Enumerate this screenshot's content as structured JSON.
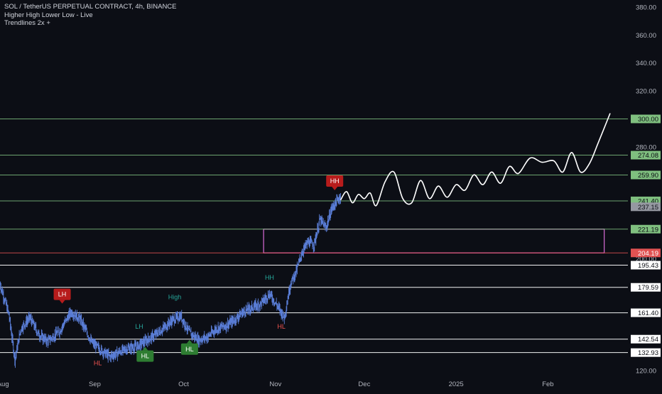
{
  "legend": {
    "symbol_line": "SOL / TetherUS PERPETUAL CONTRACT, 4h, BINANCE",
    "indicator_1": "Higher High Lower Low - Live",
    "indicator_2": "Trendlines 2x +"
  },
  "colors": {
    "background": "#0c0e15",
    "candles": "#5b7fd9",
    "green_level": "#7fbf7f",
    "red_level": "#e05252",
    "white_level": "#ffffff",
    "zone": "#c966c9",
    "label_green_bg": "#2e7d32",
    "label_red_bg": "#b71c1c",
    "text_green": "#26a69a",
    "text_red": "#ef5350",
    "axis_text": "#b2b5be"
  },
  "chart_data": {
    "type": "line",
    "title": "SOL / TetherUS PERPETUAL CONTRACT, 4h, BINANCE",
    "y_axis": {
      "range": [
        115,
        385
      ],
      "ticks": [
        "380.00",
        "360.00",
        "340.00",
        "320.00",
        "280.00",
        "200.00",
        "120.00"
      ]
    },
    "x_axis": {
      "range": [
        "2024-07-31",
        "2025-02-28"
      ],
      "ticks": [
        {
          "date": "2024-08-01",
          "label": "Aug"
        },
        {
          "date": "2024-09-01",
          "label": "Sep"
        },
        {
          "date": "2024-10-01",
          "label": "Oct"
        },
        {
          "date": "2024-11-01",
          "label": "Nov"
        },
        {
          "date": "2024-12-01",
          "label": "Dec"
        },
        {
          "date": "2025-01-01",
          "label": "2025"
        },
        {
          "date": "2025-02-01",
          "label": "Feb"
        }
      ]
    },
    "price_series": {
      "dates": [
        "2024-07-31",
        "2024-08-03",
        "2024-08-05",
        "2024-08-07",
        "2024-08-10",
        "2024-08-13",
        "2024-08-16",
        "2024-08-20",
        "2024-08-24",
        "2024-08-27",
        "2024-08-31",
        "2024-09-03",
        "2024-09-06",
        "2024-09-09",
        "2024-09-12",
        "2024-09-15",
        "2024-09-18",
        "2024-09-21",
        "2024-09-24",
        "2024-09-27",
        "2024-09-30",
        "2024-10-03",
        "2024-10-06",
        "2024-10-09",
        "2024-10-12",
        "2024-10-15",
        "2024-10-18",
        "2024-10-21",
        "2024-10-24",
        "2024-10-27",
        "2024-10-30",
        "2024-11-02",
        "2024-11-04",
        "2024-11-06",
        "2024-11-08",
        "2024-11-10",
        "2024-11-12",
        "2024-11-14",
        "2024-11-16",
        "2024-11-18",
        "2024-11-20",
        "2024-11-22",
        "2024-11-23"
      ],
      "values": [
        182,
        160,
        128,
        150,
        158,
        146,
        141,
        148,
        162,
        157,
        140,
        135,
        130,
        133,
        136,
        137,
        141,
        145,
        150,
        156,
        159,
        147,
        142,
        144,
        150,
        152,
        156,
        162,
        165,
        168,
        175,
        165,
        158,
        182,
        191,
        205,
        212,
        210,
        228,
        222,
        236,
        242,
        245
      ]
    },
    "projection_path": {
      "dates": [
        "2024-11-23",
        "2024-11-25",
        "2024-11-27",
        "2024-11-29",
        "2024-12-01",
        "2024-12-03",
        "2024-12-05",
        "2024-12-08",
        "2024-12-11",
        "2024-12-14",
        "2024-12-17",
        "2024-12-20",
        "2024-12-23",
        "2024-12-26",
        "2024-12-29",
        "2025-01-01",
        "2025-01-04",
        "2025-01-07",
        "2025-01-10",
        "2025-01-13",
        "2025-01-16",
        "2025-01-19",
        "2025-01-22",
        "2025-01-26",
        "2025-01-30",
        "2025-02-03",
        "2025-02-06",
        "2025-02-09",
        "2025-02-12",
        "2025-02-15",
        "2025-02-18",
        "2025-02-22"
      ],
      "values": [
        242,
        248,
        240,
        246,
        243,
        247,
        238,
        255,
        262,
        243,
        240,
        256,
        243,
        252,
        244,
        253,
        249,
        260,
        253,
        262,
        254,
        266,
        261,
        272,
        269,
        270,
        262,
        276,
        262,
        268,
        283,
        304
      ]
    },
    "levels": [
      {
        "value": "300.00",
        "price": 300,
        "color": "green"
      },
      {
        "value": "274.08",
        "price": 274.08,
        "color": "green"
      },
      {
        "value": "259.90",
        "price": 259.9,
        "color": "green"
      },
      {
        "value": "241.40",
        "price": 241.4,
        "color": "green"
      },
      {
        "value": "221.19",
        "price": 221.19,
        "color": "green"
      },
      {
        "value": "204.19",
        "price": 204.19,
        "color": "red"
      },
      {
        "value": "195.43",
        "price": 195.43,
        "color": "white"
      },
      {
        "value": "179.59",
        "price": 179.59,
        "color": "white"
      },
      {
        "value": "161.40",
        "price": 161.4,
        "color": "white"
      },
      {
        "value": "142.54",
        "price": 142.54,
        "color": "white"
      },
      {
        "value": "132.93",
        "price": 132.93,
        "color": "white"
      }
    ],
    "current_price": {
      "value": "237.15",
      "price": 237.15
    },
    "zone": {
      "from_date": "2024-10-28",
      "to_date": "2025-02-20",
      "low": 204.19,
      "high": 221.19
    },
    "annotations": [
      {
        "text": "LH",
        "type": "red_box",
        "date": "2024-08-21",
        "price": 168
      },
      {
        "text": "LH",
        "type": "green_text",
        "date": "2024-09-16",
        "price": 150
      },
      {
        "text": "High",
        "type": "green_text",
        "date": "2024-09-28",
        "price": 171
      },
      {
        "text": "HL",
        "type": "red_text",
        "date": "2024-09-02",
        "price": 124
      },
      {
        "text": "HL",
        "type": "green_box",
        "date": "2024-09-18",
        "price": 137
      },
      {
        "text": "HL",
        "type": "green_box",
        "date": "2024-10-03",
        "price": 142
      },
      {
        "text": "HH",
        "type": "green_text",
        "date": "2024-10-30",
        "price": 185
      },
      {
        "text": "HL",
        "type": "red_text",
        "date": "2024-11-03",
        "price": 150
      },
      {
        "text": "HH",
        "type": "red_box",
        "date": "2024-11-21",
        "price": 249
      }
    ]
  }
}
